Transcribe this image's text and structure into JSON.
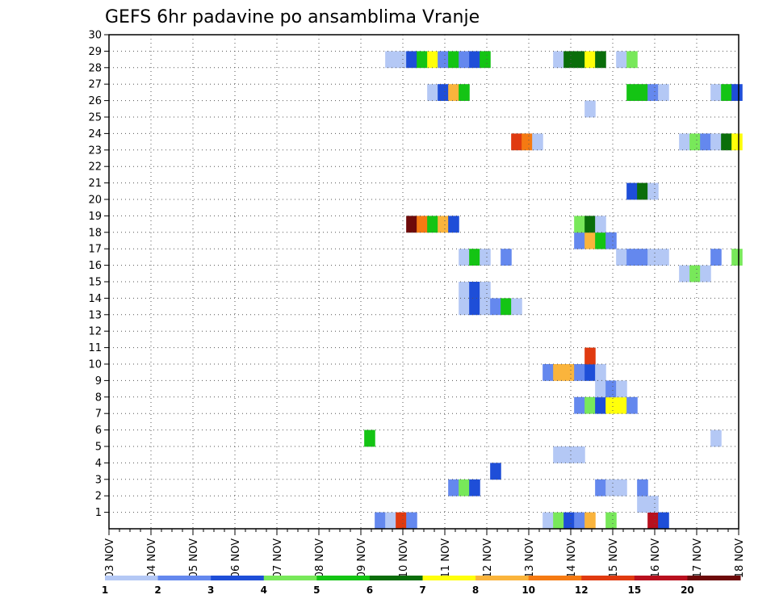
{
  "chart_data": {
    "type": "heatmap",
    "title": "GEFS 6hr padavine po ansamblima Vranje",
    "x_labels": [
      "03 NOV",
      "04 NOV",
      "05 NOV",
      "06 NOV",
      "07 NOV",
      "08 NOV",
      "09 NOV",
      "10 NOV",
      "11 NOV",
      "12 NOV",
      "13 NOV",
      "14 NOV",
      "15 NOV",
      "16 NOV",
      "17 NOV",
      "18 NOV"
    ],
    "y_labels": [
      "1",
      "2",
      "3",
      "4",
      "5",
      "6",
      "7",
      "8",
      "9",
      "10",
      "11",
      "12",
      "13",
      "14",
      "15",
      "16",
      "17",
      "18",
      "19",
      "20",
      "21",
      "22",
      "23",
      "24",
      "25",
      "26",
      "27",
      "28",
      "29",
      "30"
    ],
    "grid": "dotted",
    "colorbar": {
      "labels": [
        "1",
        "2",
        "3",
        "4",
        "5",
        "6",
        "7",
        "8",
        "10",
        "12",
        "15",
        "20"
      ],
      "colors": [
        "#b4c8f5",
        "#6488ee",
        "#1e4ed8",
        "#78e85a",
        "#14c414",
        "#0a6e0a",
        "#ffff0a",
        "#fab43c",
        "#f57a12",
        "#e03a10",
        "#b8101e",
        "#6e0a0a"
      ]
    },
    "cells": [
      {
        "m": 0,
        "t": 6.33,
        "l": 2
      },
      {
        "m": 0,
        "t": 6.58,
        "l": 1
      },
      {
        "m": 0,
        "t": 6.83,
        "l": 10
      },
      {
        "m": 0,
        "t": 7.08,
        "l": 2
      },
      {
        "m": 0,
        "t": 10.33,
        "l": 1
      },
      {
        "m": 0,
        "t": 10.58,
        "l": 4
      },
      {
        "m": 0,
        "t": 10.83,
        "l": 3
      },
      {
        "m": 0,
        "t": 11.08,
        "l": 2
      },
      {
        "m": 0,
        "t": 11.33,
        "l": 8
      },
      {
        "m": 0,
        "t": 11.83,
        "l": 4
      },
      {
        "m": 0,
        "t": 12.83,
        "l": 11
      },
      {
        "m": 0,
        "t": 13.08,
        "l": 3
      },
      {
        "m": 1,
        "t": 12.58,
        "l": 1
      },
      {
        "m": 1,
        "t": 12.83,
        "l": 1
      },
      {
        "m": 2,
        "t": 8.08,
        "l": 2
      },
      {
        "m": 2,
        "t": 8.33,
        "l": 4
      },
      {
        "m": 2,
        "t": 8.58,
        "l": 3
      },
      {
        "m": 2,
        "t": 11.58,
        "l": 2
      },
      {
        "m": 2,
        "t": 11.83,
        "l": 1
      },
      {
        "m": 2,
        "t": 12.08,
        "l": 1
      },
      {
        "m": 2,
        "t": 12.58,
        "l": 2
      },
      {
        "m": 3,
        "t": 9.08,
        "l": 3
      },
      {
        "m": 4,
        "t": 10.58,
        "l": 1
      },
      {
        "m": 4,
        "t": 10.83,
        "l": 1
      },
      {
        "m": 4,
        "t": 11.08,
        "l": 1
      },
      {
        "m": 5,
        "t": 6.08,
        "l": 5
      },
      {
        "m": 5,
        "t": 14.33,
        "l": 1
      },
      {
        "m": 7,
        "t": 11.08,
        "l": 2
      },
      {
        "m": 7,
        "t": 11.33,
        "l": 4
      },
      {
        "m": 7,
        "t": 11.58,
        "l": 3
      },
      {
        "m": 7,
        "t": 11.83,
        "l": 7
      },
      {
        "m": 7,
        "t": 12.08,
        "l": 7
      },
      {
        "m": 7,
        "t": 12.33,
        "l": 2
      },
      {
        "m": 8,
        "t": 11.58,
        "l": 1
      },
      {
        "m": 8,
        "t": 11.83,
        "l": 2
      },
      {
        "m": 8,
        "t": 12.08,
        "l": 1
      },
      {
        "m": 9,
        "t": 10.33,
        "l": 2
      },
      {
        "m": 9,
        "t": 10.58,
        "l": 8
      },
      {
        "m": 9,
        "t": 10.83,
        "l": 8
      },
      {
        "m": 9,
        "t": 11.08,
        "l": 2
      },
      {
        "m": 9,
        "t": 11.33,
        "l": 3
      },
      {
        "m": 9,
        "t": 11.58,
        "l": 1
      },
      {
        "m": 10,
        "t": 11.33,
        "l": 10
      },
      {
        "m": 13,
        "t": 8.33,
        "l": 1
      },
      {
        "m": 13,
        "t": 8.58,
        "l": 3
      },
      {
        "m": 13,
        "t": 8.83,
        "l": 1
      },
      {
        "m": 13,
        "t": 9.08,
        "l": 2
      },
      {
        "m": 13,
        "t": 9.33,
        "l": 5
      },
      {
        "m": 13,
        "t": 9.58,
        "l": 1
      },
      {
        "m": 14,
        "t": 8.33,
        "l": 1
      },
      {
        "m": 14,
        "t": 8.58,
        "l": 3
      },
      {
        "m": 14,
        "t": 8.83,
        "l": 1
      },
      {
        "m": 15,
        "t": 13.58,
        "l": 1
      },
      {
        "m": 15,
        "t": 13.83,
        "l": 4
      },
      {
        "m": 15,
        "t": 14.08,
        "l": 1
      },
      {
        "m": 16,
        "t": 8.33,
        "l": 1
      },
      {
        "m": 16,
        "t": 8.58,
        "l": 5
      },
      {
        "m": 16,
        "t": 8.83,
        "l": 1
      },
      {
        "m": 16,
        "t": 9.33,
        "l": 2
      },
      {
        "m": 16,
        "t": 12.08,
        "l": 1
      },
      {
        "m": 16,
        "t": 12.33,
        "l": 2
      },
      {
        "m": 16,
        "t": 12.58,
        "l": 2
      },
      {
        "m": 16,
        "t": 12.83,
        "l": 1
      },
      {
        "m": 16,
        "t": 13.08,
        "l": 1
      },
      {
        "m": 16,
        "t": 14.33,
        "l": 2
      },
      {
        "m": 16,
        "t": 14.83,
        "l": 4
      },
      {
        "m": 17,
        "t": 11.08,
        "l": 2
      },
      {
        "m": 17,
        "t": 11.33,
        "l": 8
      },
      {
        "m": 17,
        "t": 11.58,
        "l": 5
      },
      {
        "m": 17,
        "t": 11.83,
        "l": 2
      },
      {
        "m": 18,
        "t": 7.08,
        "l": 12
      },
      {
        "m": 18,
        "t": 7.33,
        "l": 9
      },
      {
        "m": 18,
        "t": 7.58,
        "l": 5
      },
      {
        "m": 18,
        "t": 7.83,
        "l": 8
      },
      {
        "m": 18,
        "t": 8.08,
        "l": 3
      },
      {
        "m": 18,
        "t": 11.08,
        "l": 4
      },
      {
        "m": 18,
        "t": 11.33,
        "l": 6
      },
      {
        "m": 18,
        "t": 11.58,
        "l": 1
      },
      {
        "m": 20,
        "t": 12.33,
        "l": 3
      },
      {
        "m": 20,
        "t": 12.58,
        "l": 6
      },
      {
        "m": 20,
        "t": 12.83,
        "l": 1
      },
      {
        "m": 23,
        "t": 9.58,
        "l": 10
      },
      {
        "m": 23,
        "t": 9.83,
        "l": 9
      },
      {
        "m": 23,
        "t": 10.08,
        "l": 1
      },
      {
        "m": 23,
        "t": 13.58,
        "l": 1
      },
      {
        "m": 23,
        "t": 13.83,
        "l": 4
      },
      {
        "m": 23,
        "t": 14.08,
        "l": 2
      },
      {
        "m": 23,
        "t": 14.33,
        "l": 1
      },
      {
        "m": 23,
        "t": 14.58,
        "l": 6
      },
      {
        "m": 23,
        "t": 14.83,
        "l": 7
      },
      {
        "m": 25,
        "t": 11.33,
        "l": 1
      },
      {
        "m": 26,
        "t": 7.58,
        "l": 1
      },
      {
        "m": 26,
        "t": 7.83,
        "l": 3
      },
      {
        "m": 26,
        "t": 8.08,
        "l": 8
      },
      {
        "m": 26,
        "t": 8.33,
        "l": 5
      },
      {
        "m": 26,
        "t": 12.33,
        "l": 5
      },
      {
        "m": 26,
        "t": 12.58,
        "l": 5
      },
      {
        "m": 26,
        "t": 12.83,
        "l": 2
      },
      {
        "m": 26,
        "t": 13.08,
        "l": 1
      },
      {
        "m": 26,
        "t": 14.33,
        "l": 1
      },
      {
        "m": 26,
        "t": 14.58,
        "l": 5
      },
      {
        "m": 26,
        "t": 14.83,
        "l": 3
      },
      {
        "m": 28,
        "t": 6.58,
        "l": 1
      },
      {
        "m": 28,
        "t": 6.83,
        "l": 1
      },
      {
        "m": 28,
        "t": 7.08,
        "l": 3
      },
      {
        "m": 28,
        "t": 7.33,
        "l": 5
      },
      {
        "m": 28,
        "t": 7.58,
        "l": 7
      },
      {
        "m": 28,
        "t": 7.83,
        "l": 2
      },
      {
        "m": 28,
        "t": 8.08,
        "l": 5
      },
      {
        "m": 28,
        "t": 8.33,
        "l": 2
      },
      {
        "m": 28,
        "t": 8.58,
        "l": 3
      },
      {
        "m": 28,
        "t": 8.83,
        "l": 5
      },
      {
        "m": 28,
        "t": 10.58,
        "l": 1
      },
      {
        "m": 28,
        "t": 10.83,
        "l": 6
      },
      {
        "m": 28,
        "t": 11.08,
        "l": 6
      },
      {
        "m": 28,
        "t": 11.33,
        "l": 7
      },
      {
        "m": 28,
        "t": 11.58,
        "l": 6
      },
      {
        "m": 28,
        "t": 12.08,
        "l": 1
      },
      {
        "m": 28,
        "t": 12.33,
        "l": 4
      }
    ]
  }
}
